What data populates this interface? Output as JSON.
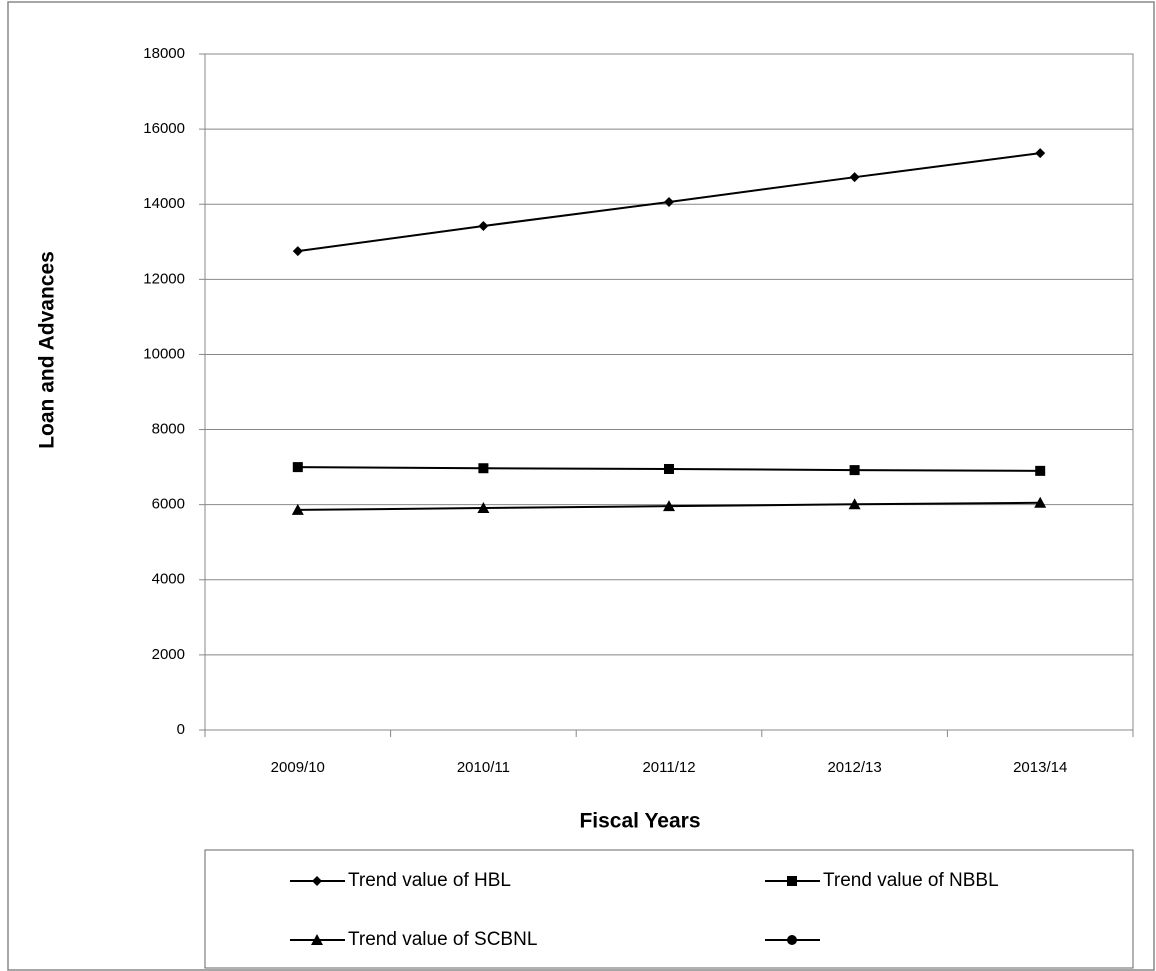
{
  "chart_data": {
    "type": "line",
    "x_label": "Fiscal Years",
    "y_label": "Loan and Advances",
    "categories": [
      "2009/10",
      "2010/11",
      "2011/12",
      "2012/13",
      "2013/14"
    ],
    "series": [
      {
        "name": "Trend value of HBL",
        "color": "#000000",
        "marker": "diamond",
        "values": [
          12750,
          13420,
          14060,
          14720,
          15360
        ]
      },
      {
        "name": "Trend value of NBBL",
        "color": "#000000",
        "marker": "square",
        "values": [
          7000,
          6970,
          6950,
          6920,
          6900
        ]
      },
      {
        "name": "Trend value of SCBNL",
        "color": "#000000",
        "marker": "triangle",
        "values": [
          5860,
          5910,
          5960,
          6010,
          6050
        ]
      }
    ],
    "ylim": [
      0,
      18000
    ],
    "yticks": [
      0,
      2000,
      4000,
      6000,
      8000,
      10000,
      12000,
      14000,
      16000,
      18000
    ],
    "grid": true
  }
}
